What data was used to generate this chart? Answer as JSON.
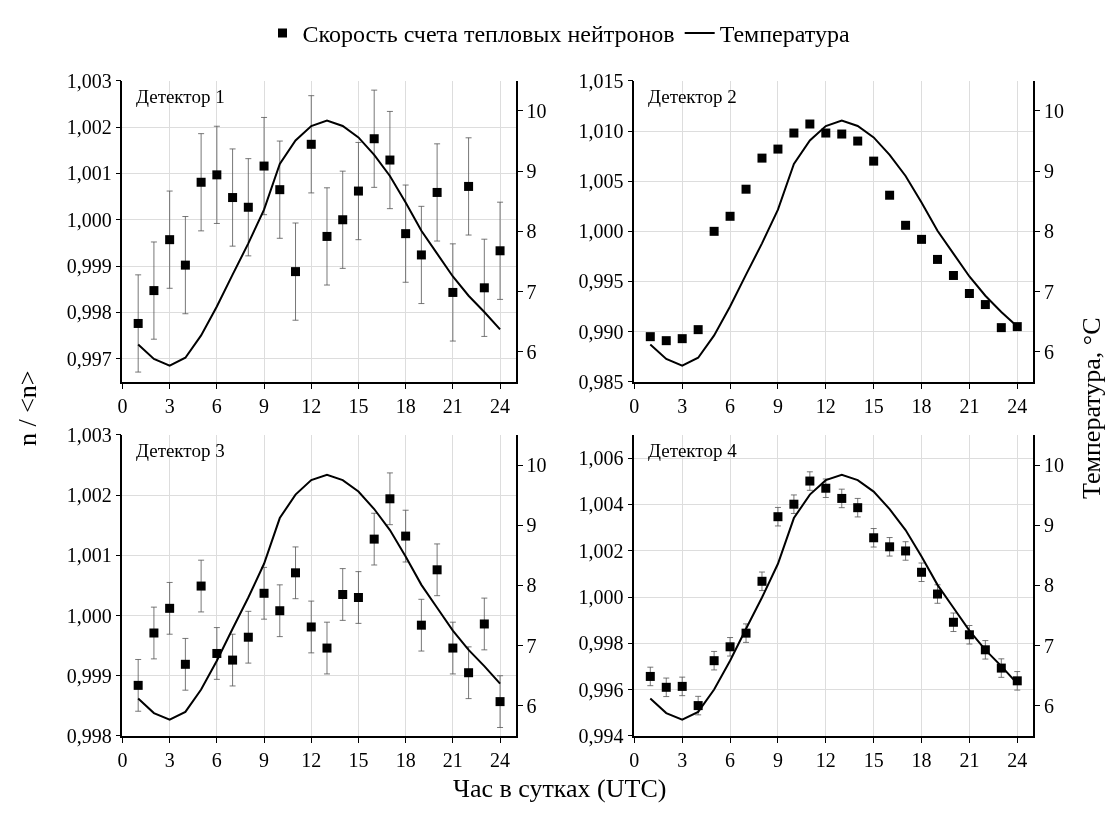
{
  "chart_data": [
    {
      "type": "scatter",
      "title": "Детектор 1",
      "ylabel": "n / <n>",
      "legend": "top",
      "grid": true,
      "x": [
        1,
        2,
        3,
        4,
        5,
        6,
        7,
        8,
        9,
        10,
        11,
        12,
        13,
        14,
        15,
        16,
        17,
        18,
        19,
        20,
        21,
        22,
        23,
        24
      ],
      "xlim": [
        0,
        25
      ],
      "xticks": [
        0,
        3,
        6,
        9,
        12,
        15,
        18,
        21,
        24
      ],
      "ylim": [
        0.9965,
        1.003
      ],
      "yticks": [
        {
          "value": 0.997,
          "label": "0,997"
        },
        {
          "value": 0.998,
          "label": "0,998"
        },
        {
          "value": 0.999,
          "label": "0,999"
        },
        {
          "value": 1.0,
          "label": "1,000"
        },
        {
          "value": 1.001,
          "label": "1,001"
        },
        {
          "value": 1.002,
          "label": "1,002"
        },
        {
          "value": 1.003,
          "label": "1,003"
        }
      ],
      "y2lim": [
        5.5,
        10.5
      ],
      "y2ticks": [
        6,
        7,
        8,
        9,
        10
      ],
      "series": [
        {
          "name": "Скорость счета тепловых нейтронов",
          "marker": "square",
          "color": "#000000",
          "values": [
            0.99776,
            0.99847,
            0.99957,
            0.99902,
            1.00081,
            1.00097,
            1.00048,
            1.00027,
            1.00116,
            1.00065,
            0.99888,
            1.00163,
            0.99964,
            1.0,
            1.00062,
            1.00175,
            1.00129,
            0.9997,
            0.99924,
            1.00059,
            0.99843,
            1.00072,
            0.99853,
            0.99933
          ],
          "errors": [
            0.00105,
            0.00105,
            0.00105,
            0.00105,
            0.00105,
            0.00105,
            0.00105,
            0.00105,
            0.00105,
            0.00105,
            0.00105,
            0.00105,
            0.00105,
            0.00105,
            0.00105,
            0.00105,
            0.00105,
            0.00105,
            0.00105,
            0.00105,
            0.00105,
            0.00105,
            0.00105,
            0.00105
          ]
        },
        {
          "name": "Температура",
          "type": "line",
          "axis": "y2",
          "color": "#000000",
          "values": [
            6.12,
            5.88,
            5.77,
            5.9,
            6.27,
            6.75,
            7.28,
            7.8,
            8.36,
            9.12,
            9.51,
            9.75,
            9.84,
            9.75,
            9.56,
            9.27,
            8.92,
            8.48,
            8.01,
            7.63,
            7.25,
            6.93,
            6.66,
            6.37
          ]
        }
      ]
    },
    {
      "type": "scatter",
      "title": "Детектор 2",
      "y2label": "Температура, °C",
      "grid": true,
      "x": [
        1,
        2,
        3,
        4,
        5,
        6,
        7,
        8,
        9,
        10,
        11,
        12,
        13,
        14,
        15,
        16,
        17,
        18,
        19,
        20,
        21,
        22,
        23,
        24
      ],
      "xlim": [
        0,
        25
      ],
      "xticks": [
        0,
        3,
        6,
        9,
        12,
        15,
        18,
        21,
        24
      ],
      "ylim": [
        0.985,
        1.015
      ],
      "yticks": [
        {
          "value": 0.985,
          "label": "0,985"
        },
        {
          "value": 0.99,
          "label": "0,990"
        },
        {
          "value": 0.995,
          "label": "0,995"
        },
        {
          "value": 1.0,
          "label": "1,000"
        },
        {
          "value": 1.005,
          "label": "1,005"
        },
        {
          "value": 1.01,
          "label": "1,010"
        },
        {
          "value": 1.015,
          "label": "1,015"
        }
      ],
      "y2lim": [
        5.5,
        10.5
      ],
      "y2ticks": [
        6,
        7,
        8,
        9,
        10
      ],
      "series": [
        {
          "marker": "square",
          "color": "#000000",
          "values": [
            0.9895,
            0.9891,
            0.9893,
            0.9902,
            1.0,
            1.0015,
            1.0042,
            1.0073,
            1.0082,
            1.0098,
            1.0107,
            1.0098,
            1.0097,
            1.009,
            1.007,
            1.0036,
            1.0006,
            0.9992,
            0.9972,
            0.9956,
            0.9938,
            0.9927,
            0.9904,
            0.9905
          ]
        },
        {
          "type": "line",
          "axis": "y2",
          "color": "#000000",
          "values": [
            6.12,
            5.88,
            5.77,
            5.9,
            6.27,
            6.75,
            7.28,
            7.8,
            8.36,
            9.12,
            9.51,
            9.75,
            9.84,
            9.75,
            9.56,
            9.27,
            8.92,
            8.48,
            8.01,
            7.63,
            7.25,
            6.93,
            6.66,
            6.42
          ]
        }
      ]
    },
    {
      "type": "scatter",
      "title": "Детектор 3",
      "xlabel": "Час в сутках (UTC)",
      "grid": true,
      "x": [
        1,
        2,
        3,
        4,
        5,
        6,
        7,
        8,
        9,
        10,
        11,
        12,
        13,
        14,
        15,
        16,
        17,
        18,
        19,
        20,
        21,
        22,
        23,
        24
      ],
      "xlim": [
        0,
        25
      ],
      "xticks": [
        0,
        3,
        6,
        9,
        12,
        15,
        18,
        21,
        24
      ],
      "ylim": [
        0.998,
        1.003
      ],
      "yticks": [
        {
          "value": 0.998,
          "label": "0,998"
        },
        {
          "value": 0.999,
          "label": "0,999"
        },
        {
          "value": 1.0,
          "label": "1,000"
        },
        {
          "value": 1.001,
          "label": "1,001"
        },
        {
          "value": 1.002,
          "label": "1,002"
        },
        {
          "value": 1.003,
          "label": "1,003"
        }
      ],
      "y2lim": [
        5.5,
        10.5
      ],
      "y2ticks": [
        6,
        7,
        8,
        9,
        10
      ],
      "series": [
        {
          "marker": "square",
          "color": "#000000",
          "values": [
            0.99884,
            0.99971,
            1.00012,
            0.99919,
            1.00049,
            0.99937,
            0.99926,
            0.99964,
            1.00037,
            1.00008,
            1.00071,
            0.99981,
            0.99946,
            1.00035,
            1.0003,
            1.00127,
            1.00194,
            1.00132,
            0.99984,
            1.00076,
            0.99946,
            0.99905,
            0.99986,
            0.99857
          ],
          "errors": [
            0.00043,
            0.00043,
            0.00043,
            0.00043,
            0.00043,
            0.00043,
            0.00043,
            0.00043,
            0.00043,
            0.00043,
            0.00043,
            0.00043,
            0.00043,
            0.00043,
            0.00043,
            0.00043,
            0.00043,
            0.00043,
            0.00043,
            0.00043,
            0.00043,
            0.00043,
            0.00043,
            0.00043
          ]
        },
        {
          "type": "line",
          "axis": "y2",
          "color": "#000000",
          "values": [
            6.12,
            5.88,
            5.77,
            5.9,
            6.27,
            6.75,
            7.28,
            7.8,
            8.36,
            9.12,
            9.51,
            9.75,
            9.84,
            9.75,
            9.56,
            9.27,
            8.92,
            8.48,
            8.01,
            7.63,
            7.25,
            6.93,
            6.66,
            6.37
          ]
        }
      ]
    },
    {
      "type": "scatter",
      "title": "Детектор 4",
      "grid": true,
      "x": [
        1,
        2,
        3,
        4,
        5,
        6,
        7,
        8,
        9,
        10,
        11,
        12,
        13,
        14,
        15,
        16,
        17,
        18,
        19,
        20,
        21,
        22,
        23,
        24
      ],
      "xlim": [
        0,
        25
      ],
      "xticks": [
        0,
        3,
        6,
        9,
        12,
        15,
        18,
        21,
        24
      ],
      "ylim": [
        0.994,
        1.007
      ],
      "yticks": [
        {
          "value": 0.994,
          "label": "0,994"
        },
        {
          "value": 0.996,
          "label": "0,996"
        },
        {
          "value": 0.998,
          "label": "0,998"
        },
        {
          "value": 1.0,
          "label": "1,000"
        },
        {
          "value": 1.002,
          "label": "1,002"
        },
        {
          "value": 1.004,
          "label": "1,004"
        },
        {
          "value": 1.006,
          "label": "1,006"
        }
      ],
      "y2lim": [
        5.5,
        10.5
      ],
      "y2ticks": [
        6,
        7,
        8,
        9,
        10
      ],
      "series": [
        {
          "marker": "square",
          "color": "#000000",
          "values": [
            0.99657,
            0.9961,
            0.99614,
            0.99531,
            0.99725,
            0.99785,
            0.99844,
            1.00068,
            1.00347,
            1.00401,
            1.00501,
            1.0047,
            1.00426,
            1.00386,
            1.00256,
            1.00217,
            1.00199,
            1.00107,
            1.00013,
            0.99891,
            0.99837,
            0.99772,
            0.99693,
            0.99638
          ],
          "errors": [
            0.0004,
            0.0004,
            0.0004,
            0.0004,
            0.0004,
            0.0004,
            0.0004,
            0.0004,
            0.0004,
            0.0004,
            0.0004,
            0.0004,
            0.0004,
            0.0004,
            0.0004,
            0.0004,
            0.0004,
            0.0004,
            0.0004,
            0.0004,
            0.0004,
            0.0004,
            0.0004,
            0.0004
          ]
        },
        {
          "type": "line",
          "axis": "y2",
          "color": "#000000",
          "values": [
            6.12,
            5.88,
            5.77,
            5.9,
            6.27,
            6.75,
            7.28,
            7.8,
            8.36,
            9.12,
            9.51,
            9.75,
            9.84,
            9.75,
            9.56,
            9.27,
            8.92,
            8.48,
            8.01,
            7.63,
            7.25,
            6.93,
            6.66,
            6.37
          ]
        }
      ]
    }
  ]
}
